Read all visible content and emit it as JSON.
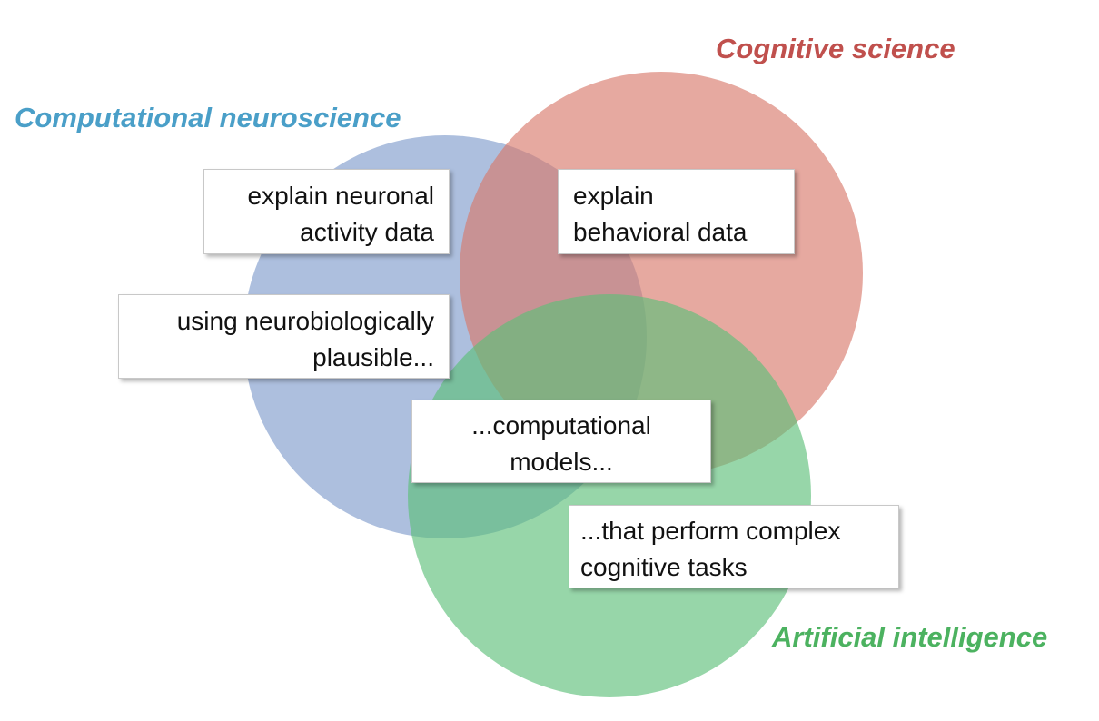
{
  "circles": [
    {
      "id": "computational-neuroscience",
      "label": "Computational neuroscience",
      "label_color": "#4a9fc8",
      "fill": "#7f9bcb"
    },
    {
      "id": "cognitive-science",
      "label": "Cognitive science",
      "label_color": "#c0504d",
      "fill": "#d8786a"
    },
    {
      "id": "artificial-intelligence",
      "label": "Artificial intelligence",
      "label_color": "#4cb260",
      "fill": "#5cbf78"
    }
  ],
  "boxes": {
    "neuronal": {
      "line1": "explain neuronal",
      "line2": "activity data"
    },
    "behavioral": {
      "line1": "explain",
      "line2": "behavioral data"
    },
    "neurobio": {
      "line1": "using neurobiologically",
      "line2": "plausible..."
    },
    "models": {
      "line1": "...computational",
      "line2": "models..."
    },
    "complex": {
      "line1": "...that perform complex",
      "line2": "cognitive tasks"
    }
  }
}
